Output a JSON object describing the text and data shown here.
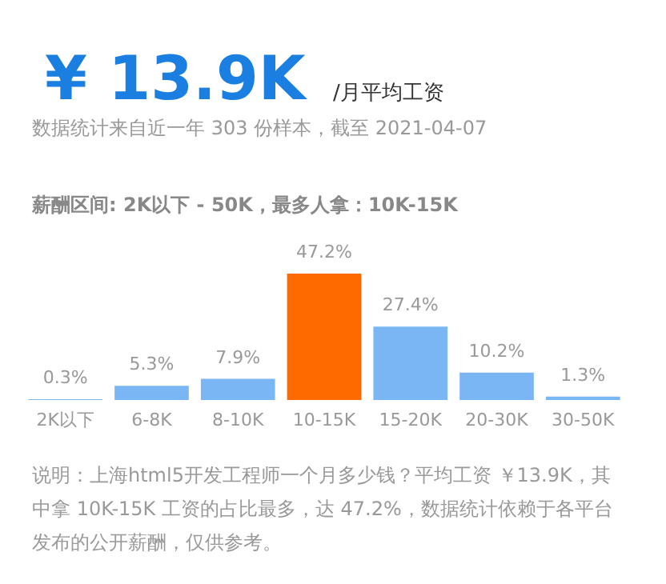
{
  "chart_data": {
    "type": "bar",
    "title": "¥ 13.9K",
    "subtitle": "/月平均工资",
    "annotations": [
      "数据统计来自近一年 303 份样本，截至 2021-04-07",
      "薪酬区间: 2K以下 - 50K，最多人拿：10K-15K",
      "说明：上海html5开发工程师一个月多少钱？平均工资 ￥13.9K，其中拿 10K-15K 工资的占比最多，达 47.2%，数据统计依赖于各平台发布的公开薪酬，仅供参考。"
    ],
    "categories": [
      "2K以下",
      "6-8K",
      "8-10K",
      "10-15K",
      "15-20K",
      "20-30K",
      "30-50K"
    ],
    "values": [
      0.3,
      5.3,
      7.9,
      47.2,
      27.4,
      10.2,
      1.3
    ],
    "colors": [
      "#7ab6f4",
      "#7ab6f4",
      "#7ab6f4",
      "#ff6a00",
      "#7ab6f4",
      "#7ab6f4",
      "#7ab6f4"
    ],
    "value_labels": [
      "0.3%",
      "5.3%",
      "7.9%",
      "47.2%",
      "27.4%",
      "10.2%",
      "1.3%"
    ],
    "grid": false
  }
}
